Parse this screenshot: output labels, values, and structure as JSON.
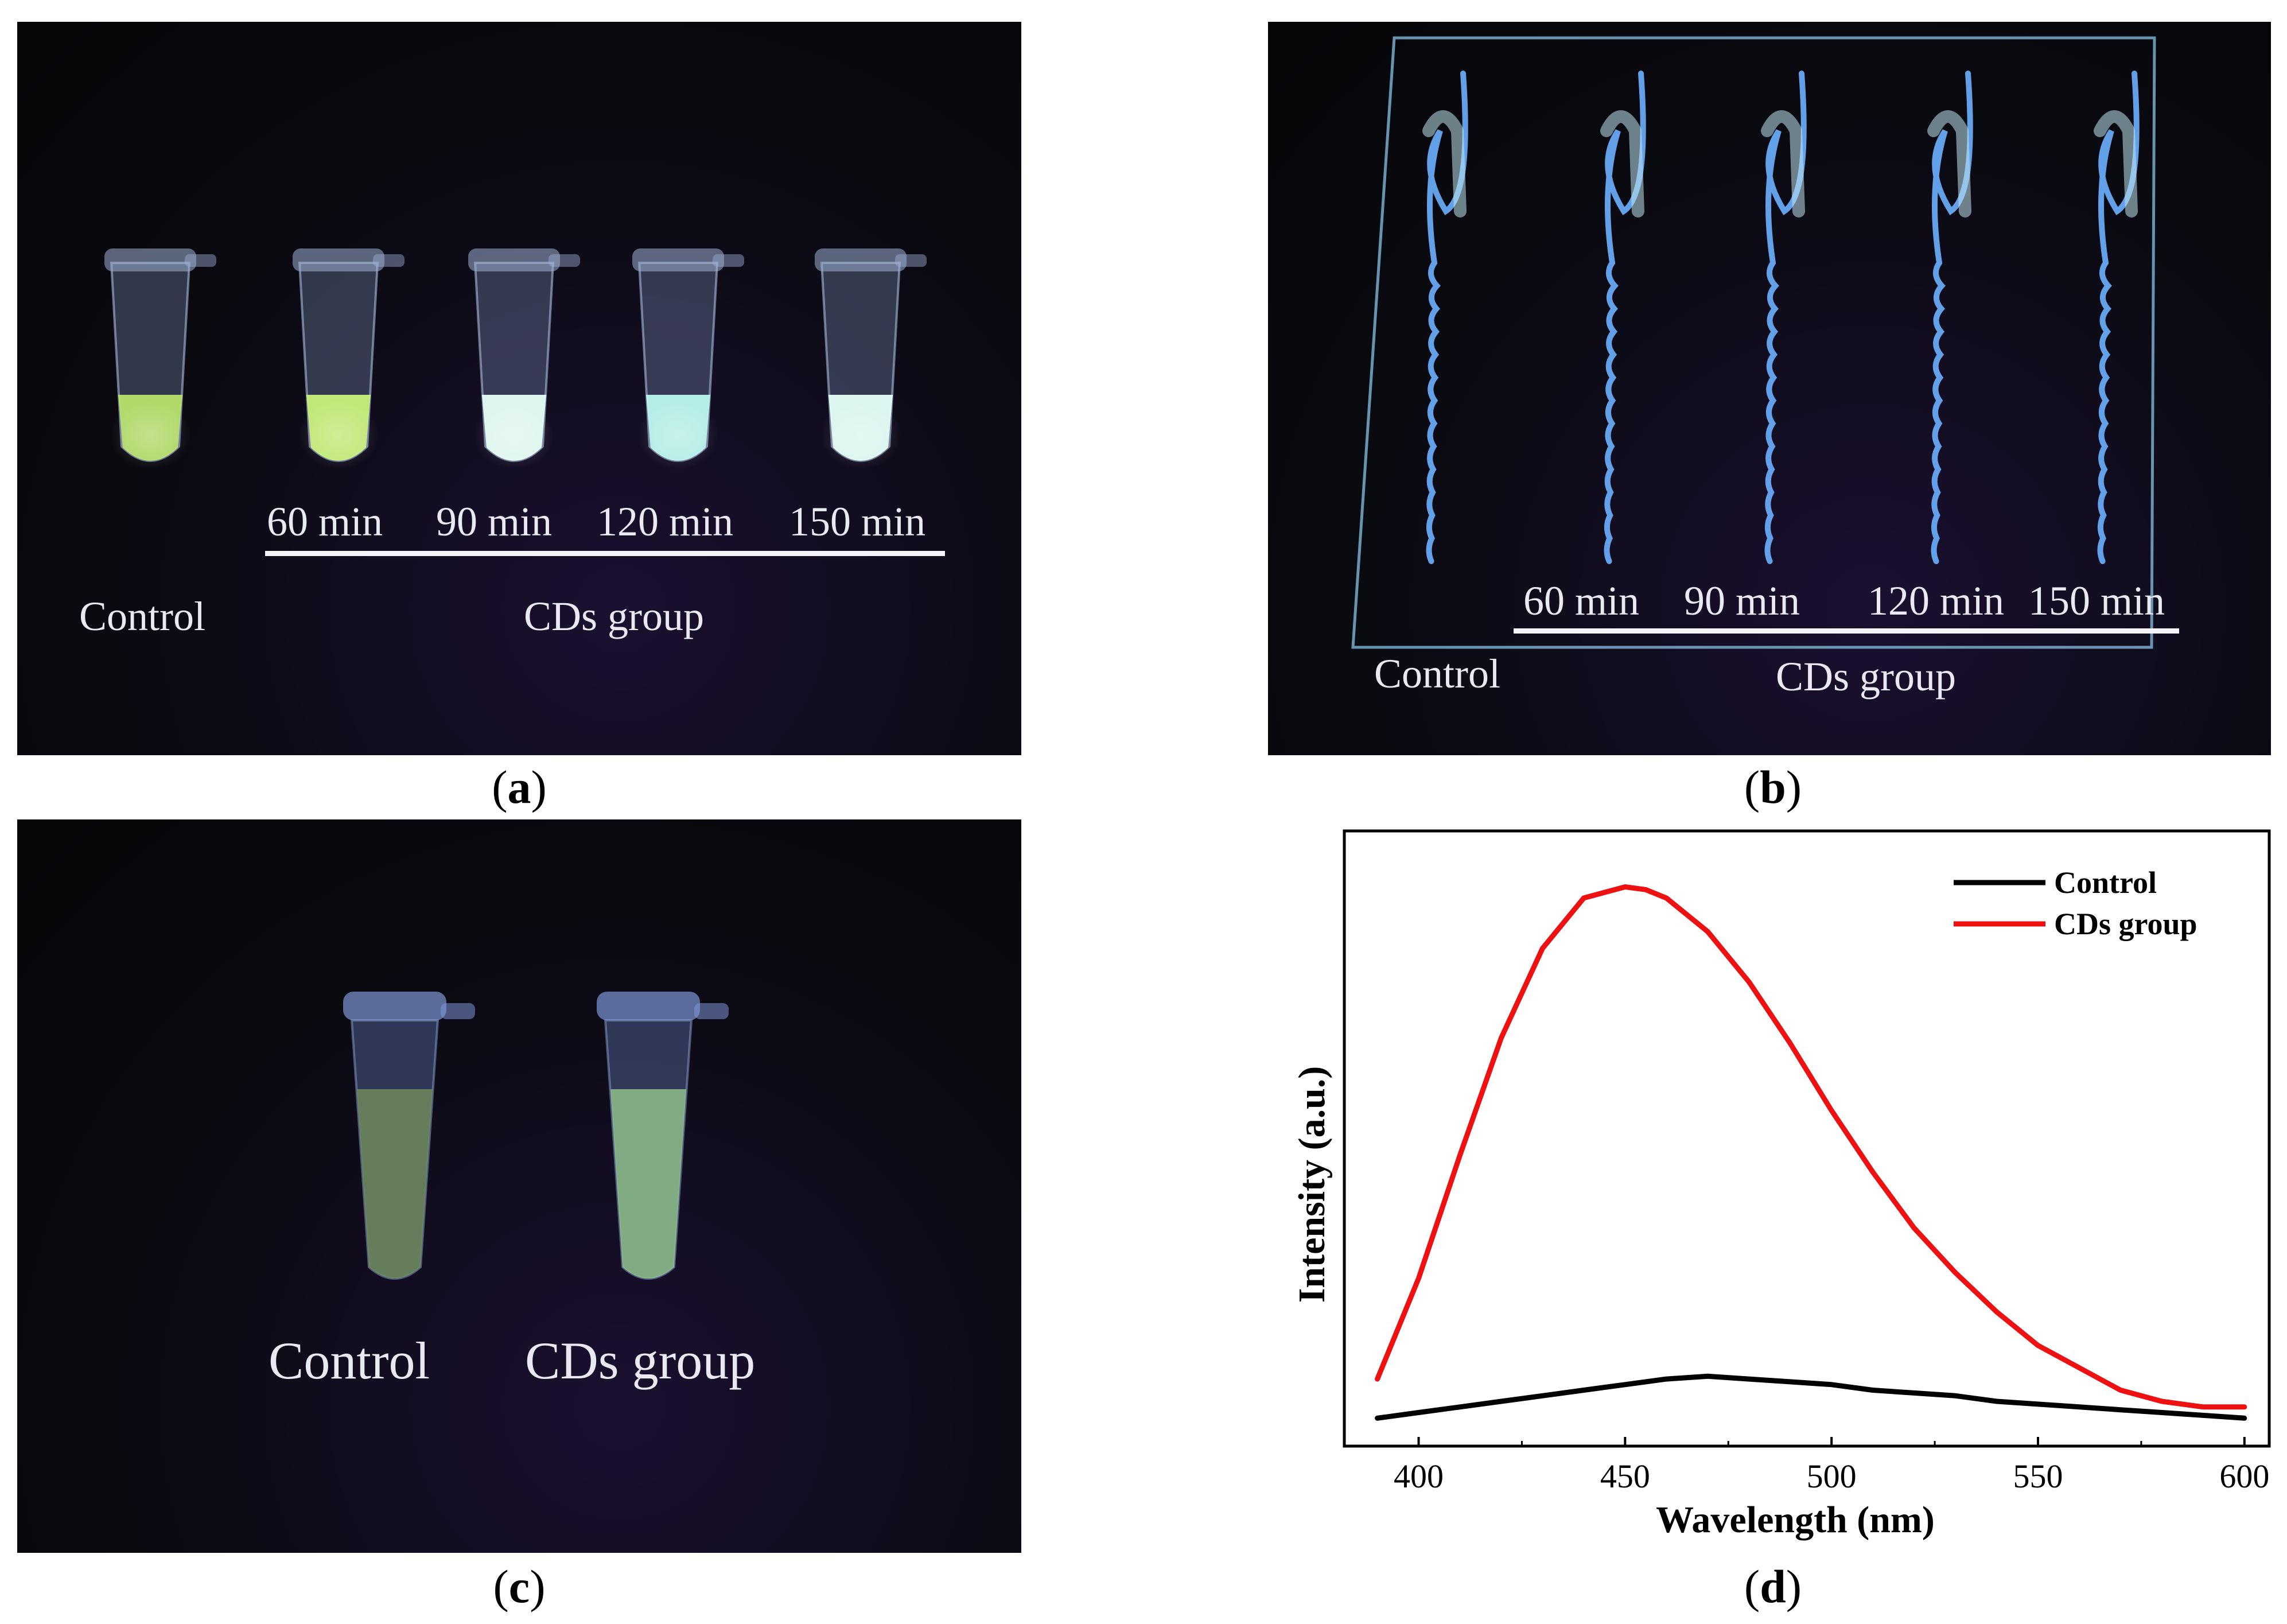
{
  "figure": {
    "panels": {
      "a": {
        "caption": "a",
        "times": [
          "60 min",
          "90 min",
          "120 min",
          "150 min"
        ],
        "control_label": "Control",
        "group_label": "CDs group",
        "tube_glow_colors": [
          "#b8e06a",
          "#c9f07a",
          "#e8fff6",
          "#baf7ee",
          "#e6fff8"
        ]
      },
      "b": {
        "caption": "b",
        "times": [
          "60 min",
          "90 min",
          "120 min",
          "150 min"
        ],
        "control_label": "Control",
        "group_label": "CDs group",
        "worm_color": "#6cb0ff"
      },
      "c": {
        "caption": "c",
        "control_label": "Control",
        "group_label": "CDs group",
        "tube_glow_colors": [
          "#6f8a5a",
          "#8fbf8a"
        ]
      },
      "d": {
        "caption": "d"
      }
    }
  },
  "chart_data": {
    "type": "line",
    "title": "",
    "xlabel": "Wavelength (nm)",
    "ylabel": "Intensity (a.u.)",
    "xlim": [
      382,
      606
    ],
    "ylim": [
      0,
      1.1
    ],
    "xticks": [
      400,
      450,
      500,
      550,
      600
    ],
    "legend_position": "top-right",
    "series": [
      {
        "name": "Control",
        "color": "#000000",
        "x": [
          390,
          400,
          410,
          420,
          430,
          440,
          450,
          460,
          470,
          480,
          490,
          500,
          510,
          520,
          530,
          540,
          550,
          560,
          570,
          580,
          590,
          600
        ],
        "y": [
          0.05,
          0.06,
          0.07,
          0.08,
          0.09,
          0.1,
          0.11,
          0.12,
          0.125,
          0.12,
          0.115,
          0.11,
          0.1,
          0.095,
          0.09,
          0.08,
          0.075,
          0.07,
          0.065,
          0.06,
          0.055,
          0.05
        ]
      },
      {
        "name": "CDs group",
        "color": "#ee1111",
        "x": [
          390,
          400,
          410,
          420,
          430,
          440,
          450,
          455,
          460,
          470,
          480,
          490,
          500,
          510,
          520,
          530,
          540,
          550,
          560,
          570,
          580,
          590,
          600
        ],
        "y": [
          0.12,
          0.3,
          0.52,
          0.73,
          0.89,
          0.98,
          1.0,
          0.995,
          0.98,
          0.92,
          0.83,
          0.72,
          0.6,
          0.49,
          0.39,
          0.31,
          0.24,
          0.18,
          0.14,
          0.1,
          0.08,
          0.07,
          0.07
        ]
      }
    ]
  }
}
